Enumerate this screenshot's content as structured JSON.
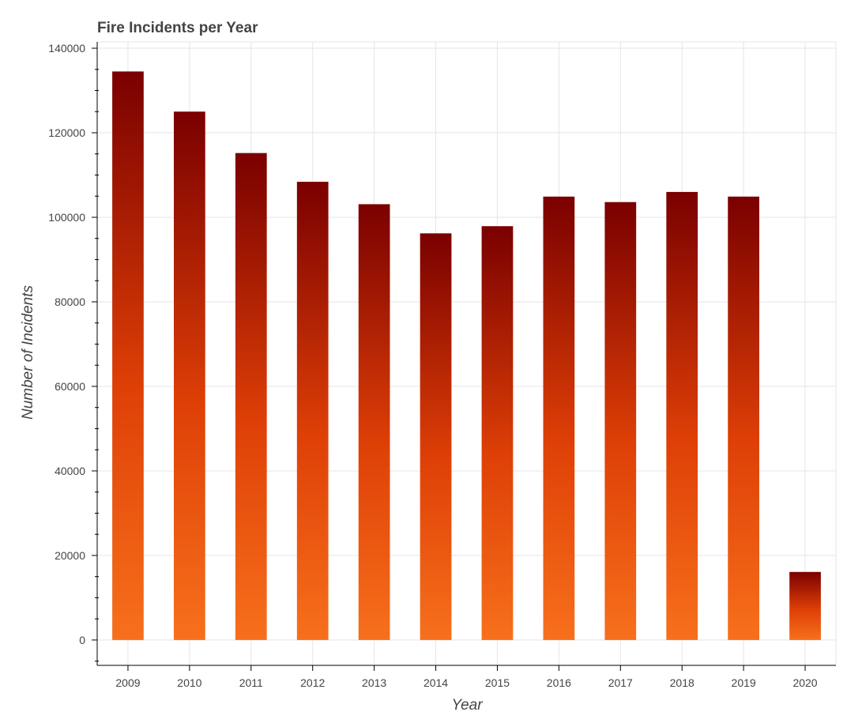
{
  "chart_data": {
    "type": "bar",
    "title": "Fire Incidents per Year",
    "xlabel": "Year",
    "ylabel": "Number of Incidents",
    "categories": [
      "2009",
      "2010",
      "2011",
      "2012",
      "2013",
      "2014",
      "2015",
      "2016",
      "2017",
      "2018",
      "2019",
      "2020"
    ],
    "values": [
      134500,
      125000,
      115200,
      108400,
      103100,
      96200,
      97900,
      104900,
      103600,
      106000,
      104900,
      16100
    ],
    "ylim": [
      -6000,
      141500
    ],
    "yticks": [
      0,
      20000,
      40000,
      60000,
      80000,
      100000,
      120000,
      140000
    ],
    "ytick_labels": [
      "0",
      "20000",
      "40000",
      "60000",
      "80000",
      "100000",
      "120000",
      "140000"
    ],
    "grid": true,
    "legend": "none",
    "colors": {
      "bar_bottom": "#f7701c",
      "bar_middle": "#de3f06",
      "bar_top": "#7a0000",
      "grid": "#e5e5e5",
      "axis": "#000000",
      "text": "#444444"
    }
  }
}
